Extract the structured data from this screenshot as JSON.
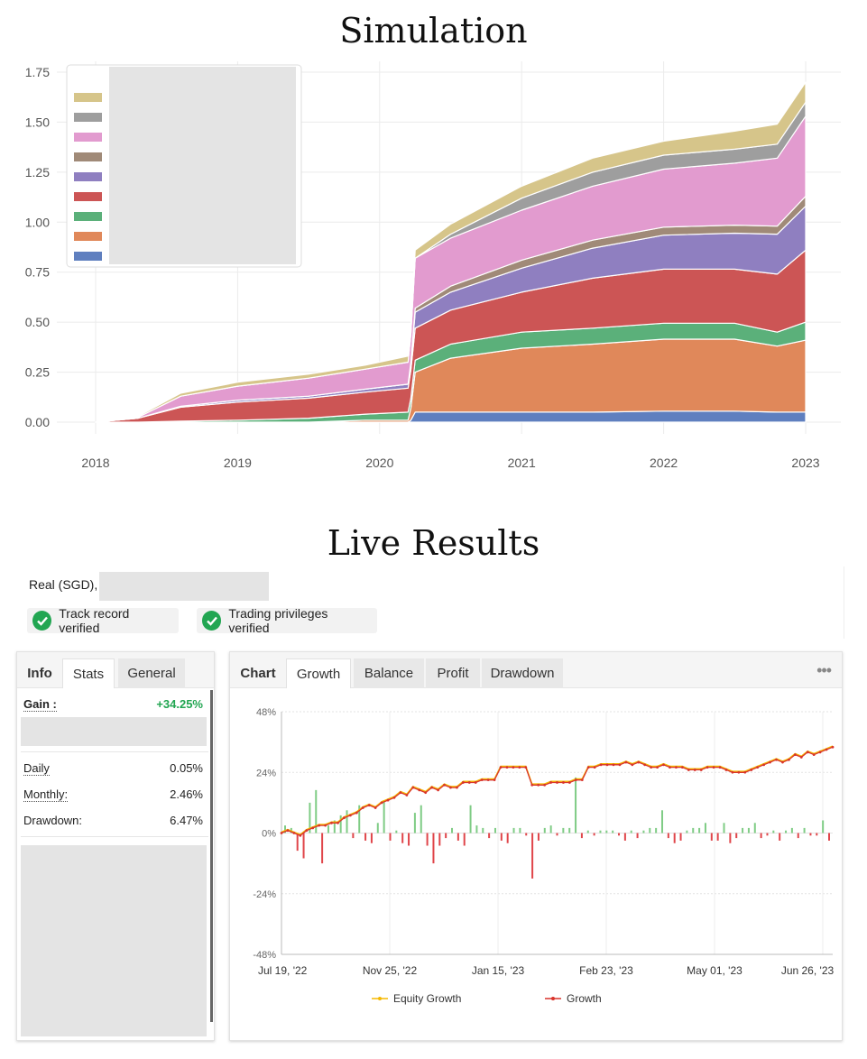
{
  "simulation": {
    "title": "Simulation",
    "chart_data": {
      "type": "area",
      "stacked": true,
      "x": [
        2018.0,
        2018.3,
        2018.6,
        2019.0,
        2019.5,
        2019.9,
        2020.2,
        2020.22,
        2020.25,
        2020.5,
        2021.0,
        2021.5,
        2022.0,
        2022.5,
        2022.8,
        2023.0
      ],
      "series": [
        {
          "color": "#5f7fbf",
          "values": [
            0,
            0,
            0,
            0,
            0,
            0,
            0,
            0.01,
            0.05,
            0.05,
            0.05,
            0.05,
            0.055,
            0.055,
            0.05,
            0.05
          ]
        },
        {
          "color": "#e0885a",
          "values": [
            0,
            0,
            0,
            0,
            0,
            0.01,
            0.01,
            0.06,
            0.2,
            0.27,
            0.32,
            0.34,
            0.36,
            0.36,
            0.33,
            0.36
          ]
        },
        {
          "color": "#5bb07a",
          "values": [
            0,
            0,
            0.005,
            0.01,
            0.02,
            0.03,
            0.04,
            0.05,
            0.06,
            0.07,
            0.08,
            0.08,
            0.08,
            0.08,
            0.07,
            0.09
          ]
        },
        {
          "color": "#cc5555",
          "values": [
            0,
            0.02,
            0.07,
            0.09,
            0.1,
            0.11,
            0.12,
            0.14,
            0.16,
            0.17,
            0.2,
            0.25,
            0.27,
            0.27,
            0.29,
            0.36
          ]
        },
        {
          "color": "#8f7fc0",
          "values": [
            0,
            0,
            0.005,
            0.01,
            0.01,
            0.015,
            0.02,
            0.03,
            0.08,
            0.09,
            0.12,
            0.15,
            0.17,
            0.18,
            0.2,
            0.22
          ]
        },
        {
          "color": "#a08a78",
          "values": [
            0,
            0,
            0,
            0,
            0,
            0,
            0,
            0.01,
            0.02,
            0.03,
            0.04,
            0.04,
            0.04,
            0.04,
            0.04,
            0.05
          ]
        },
        {
          "color": "#e29bcf",
          "values": [
            0,
            0.005,
            0.05,
            0.07,
            0.09,
            0.1,
            0.11,
            0.14,
            0.25,
            0.24,
            0.25,
            0.27,
            0.29,
            0.31,
            0.34,
            0.4
          ]
        },
        {
          "color": "#9e9e9e",
          "values": [
            0,
            0,
            0,
            0,
            0,
            0,
            0,
            0,
            0,
            0.02,
            0.06,
            0.07,
            0.07,
            0.07,
            0.07,
            0.07
          ]
        },
        {
          "color": "#d6c58a",
          "values": [
            0,
            0.005,
            0.015,
            0.02,
            0.02,
            0.02,
            0.03,
            0.03,
            0.04,
            0.05,
            0.06,
            0.07,
            0.07,
            0.09,
            0.1,
            0.1
          ]
        }
      ],
      "xticks": [
        "2018",
        "2019",
        "2020",
        "2021",
        "2022",
        "2023"
      ],
      "xtick_values": [
        2018,
        2019,
        2020,
        2021,
        2022,
        2023
      ],
      "yticks": [
        "0.00",
        "0.25",
        "0.50",
        "0.75",
        "1.00",
        "1.25",
        "1.50",
        "1.75"
      ],
      "ylim": [
        0,
        1.75
      ],
      "xlim": [
        2018,
        2023
      ],
      "grid": true,
      "legend": "top-left"
    }
  },
  "live": {
    "title": "Live Results",
    "account_label": "Real (SGD),",
    "badges": [
      "Track record verified",
      "Trading privileges verified"
    ],
    "left_tabs": [
      "Info",
      "Stats",
      "General"
    ],
    "gain_label": "Gain :",
    "gain_value": "+34.25%",
    "stats": [
      {
        "label": "Daily",
        "value": "0.05%"
      },
      {
        "label": "Monthly:",
        "value": "2.46%"
      },
      {
        "label": "Drawdown:",
        "value": "6.47%"
      }
    ],
    "chart_tabs": [
      "Chart",
      "Growth",
      "Balance",
      "Profit",
      "Drawdown"
    ],
    "more_icon": "more-dots-icon",
    "chart_data": {
      "type": "line",
      "yticks": [
        "48%",
        "24%",
        "0%",
        "-24%",
        "-48%"
      ],
      "ytick_values": [
        48,
        24,
        0,
        -24,
        -48
      ],
      "ylim": [
        -48,
        48
      ],
      "xticks": [
        "Jul 19, '22",
        "Nov 25, '22",
        "Jan 15, '23",
        "Feb 23, '23",
        "May 01, '23",
        "Jun 26, '23"
      ],
      "legend": [
        "Equity Growth",
        "Growth"
      ],
      "legend_position": "bottom",
      "colors": {
        "equity": "#f5b800",
        "growth": "#d9342b",
        "bar_pos": "#7fcc85",
        "bar_neg": "#e0454a"
      },
      "growth": [
        0,
        1,
        0,
        -1,
        1,
        2,
        3,
        3,
        4,
        4,
        6,
        7,
        8,
        10,
        11,
        10,
        12,
        13,
        14,
        16,
        15,
        18,
        17,
        16,
        18,
        17,
        19,
        18,
        18,
        20,
        20,
        20,
        21,
        21,
        21,
        26,
        26,
        26,
        26,
        26,
        19,
        19,
        19,
        20,
        20,
        20,
        20,
        21,
        21,
        26,
        26,
        27,
        27,
        27,
        27,
        28,
        27,
        28,
        27,
        26,
        26,
        27,
        26,
        26,
        26,
        25,
        25,
        25,
        26,
        26,
        26,
        25,
        24,
        24,
        24,
        25,
        26,
        27,
        28,
        29,
        28,
        29,
        31,
        30,
        32,
        31,
        32,
        33,
        34
      ],
      "bars": [
        3,
        2,
        -7,
        -10,
        12,
        17,
        -12,
        3,
        5,
        7,
        9,
        -2,
        11,
        -3,
        -4,
        4,
        13,
        -3,
        1,
        -4,
        -5,
        8,
        11,
        -5,
        -12,
        -5,
        -2,
        2,
        -3,
        -5,
        11,
        3,
        2,
        -2,
        2,
        -3,
        -4,
        2,
        2,
        -1,
        -18,
        -3,
        2,
        3,
        -1,
        2,
        2,
        22,
        -2,
        1,
        -1,
        1,
        1,
        1,
        -1,
        -3,
        1,
        -2,
        1,
        2,
        2,
        9,
        -2,
        -4,
        -3,
        1,
        2,
        2,
        4,
        -3,
        -3,
        4,
        -4,
        -2,
        2,
        2,
        4,
        -2,
        -1,
        1,
        -3,
        1,
        2,
        -2,
        2,
        -1,
        -1,
        5,
        -3
      ]
    }
  }
}
